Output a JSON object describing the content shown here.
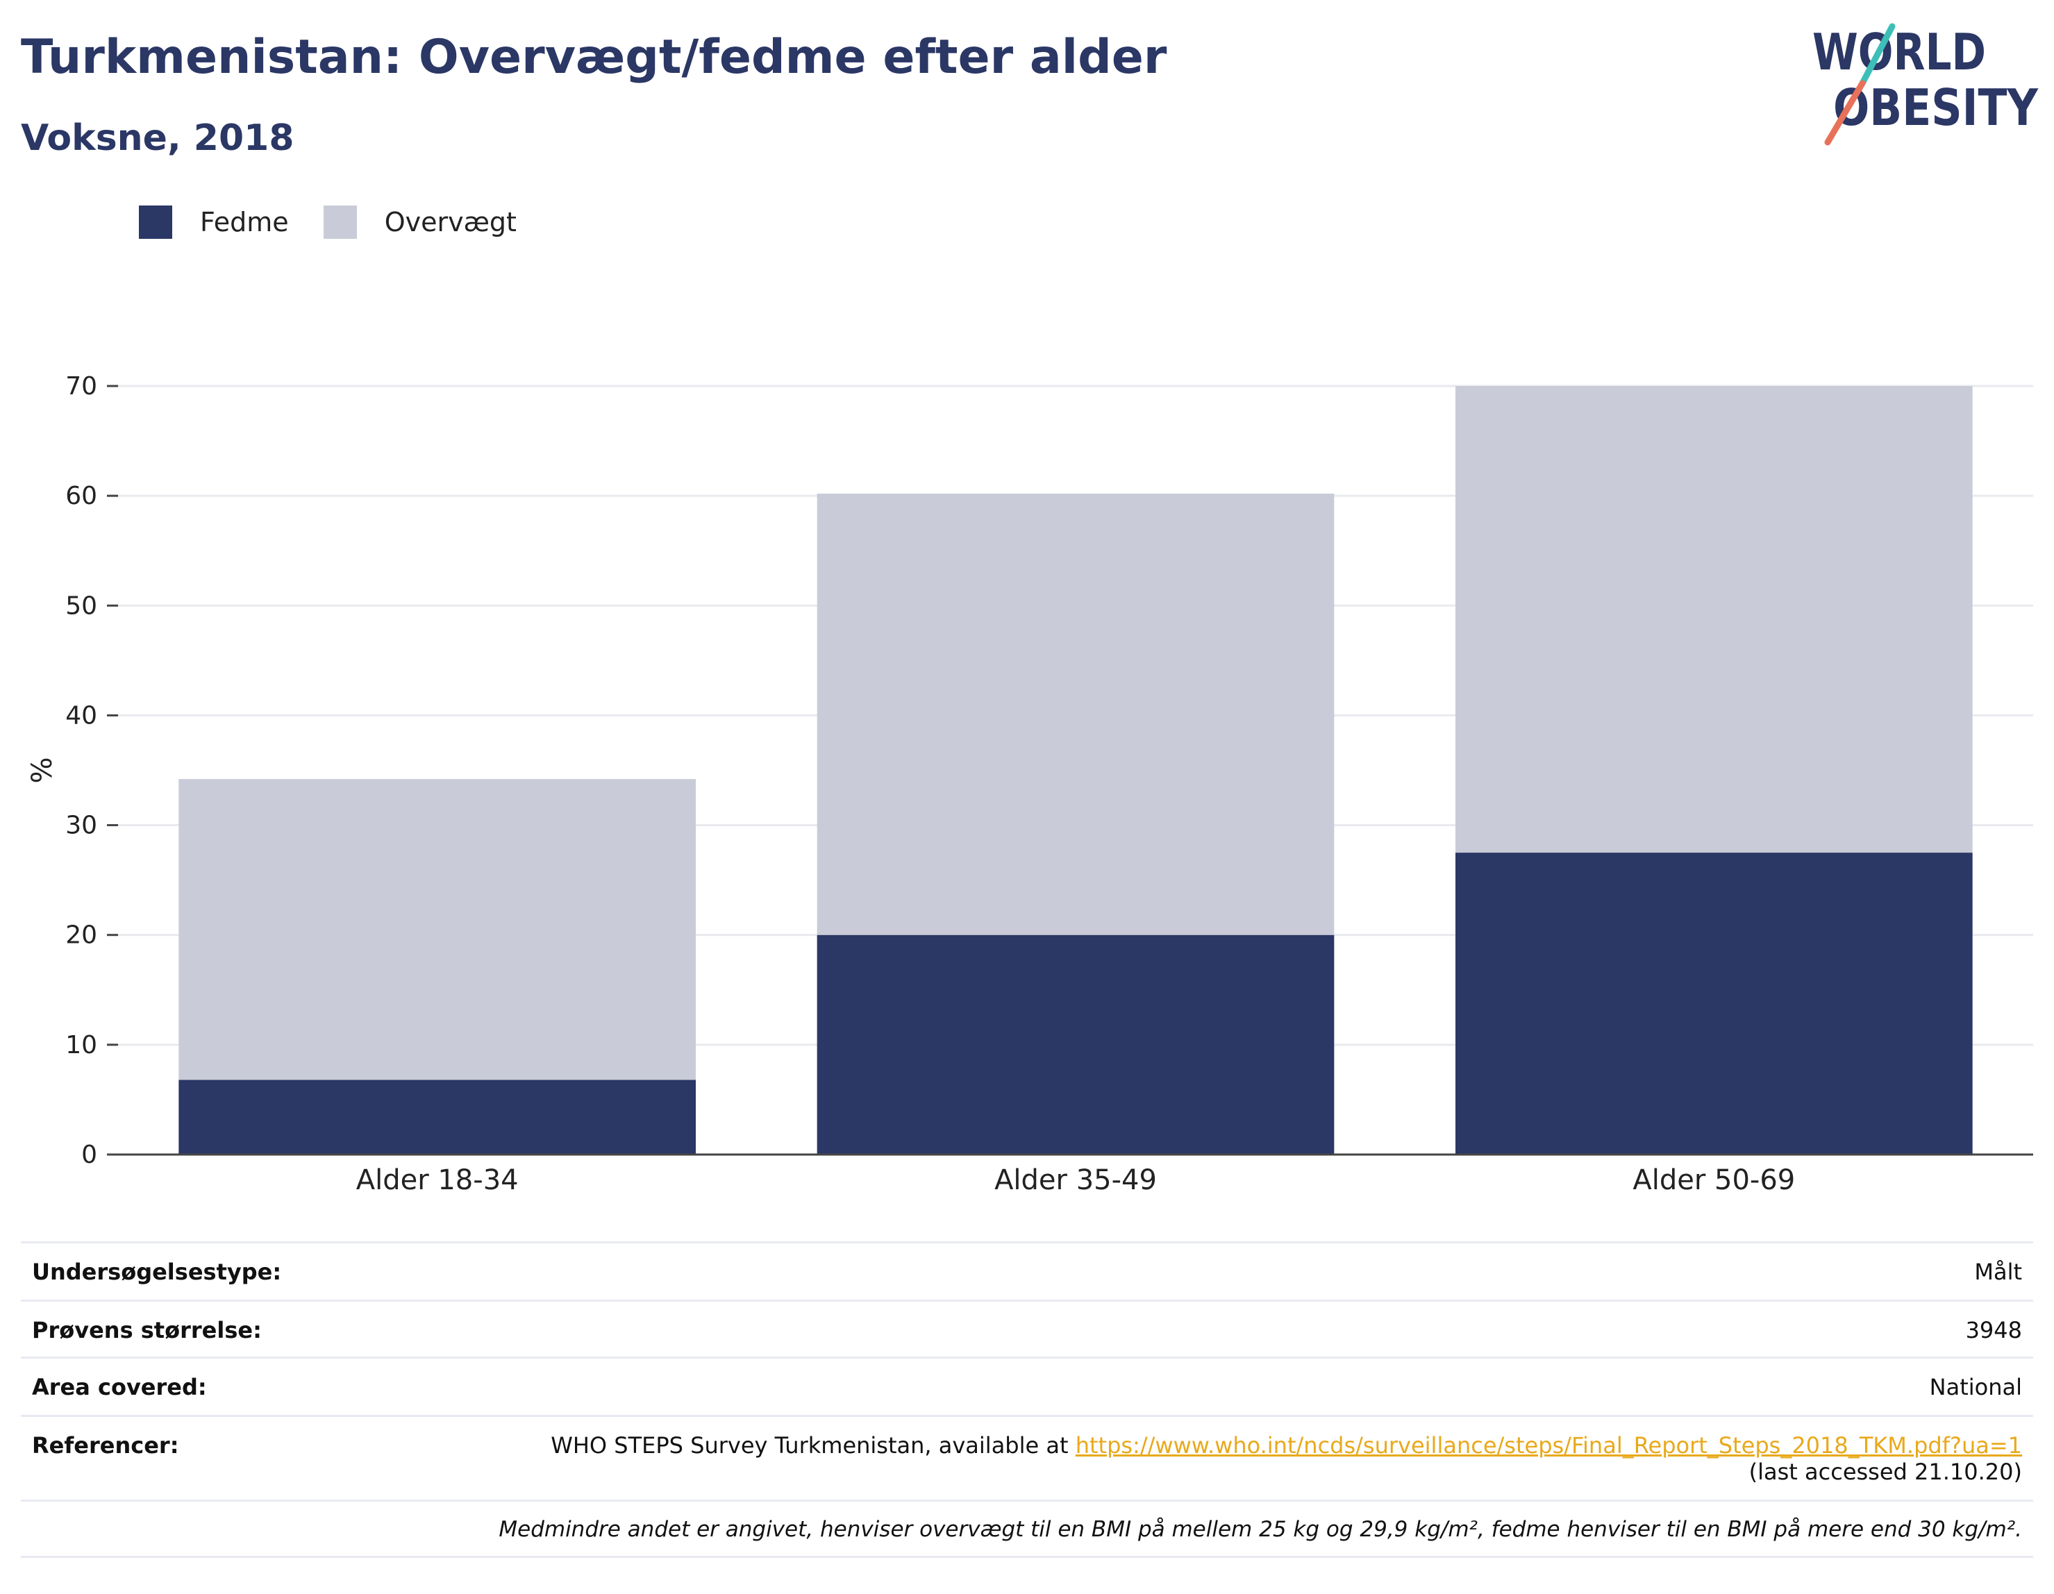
{
  "header": {
    "title": "Turkmenistan: Overvægt/fedme efter alder",
    "subtitle": "Voksne, 2018"
  },
  "logo": {
    "line1": "WORLD",
    "line2": "OBESITY",
    "text_color": "#2b3765",
    "slash_color_top": "#3dbfb8",
    "slash_color_bottom": "#e8715a"
  },
  "legend": {
    "items": [
      {
        "label": "Fedme",
        "color": "#2b3765"
      },
      {
        "label": "Overvægt",
        "color": "#c9ccd8"
      }
    ]
  },
  "chart_data": {
    "type": "bar",
    "stacked": true,
    "categories": [
      "Alder 18-34",
      "Alder 35-49",
      "Alder 50-69"
    ],
    "series": [
      {
        "name": "Fedme",
        "color": "#2b3765",
        "values": [
          6.8,
          20.0,
          27.5
        ]
      },
      {
        "name": "Overvægt",
        "color": "#c9ccd8",
        "values": [
          27.4,
          40.2,
          42.5
        ]
      }
    ],
    "ylabel": "%",
    "ylim": [
      0,
      70
    ],
    "yticks": [
      0,
      10,
      20,
      30,
      40,
      50,
      60,
      70
    ],
    "grid": true,
    "legend_position": "top-left"
  },
  "info": {
    "survey_type_label": "Undersøgelsestype:",
    "survey_type_value": "Målt",
    "sample_size_label": "Prøvens størrelse:",
    "sample_size_value": "3948",
    "area_label": "Area covered:",
    "area_value": "National",
    "references_label": "Referencer:",
    "references_text": "WHO STEPS Survey Turkmenistan, available at ",
    "references_link": "https://www.who.int/ncds/surveillance/steps/Final_Report_Steps_2018_TKM.pdf?ua=1",
    "references_accessed": "(last accessed 21.10.20)",
    "note": "Medmindre andet er angivet, henviser overvægt til en BMI på mellem 25 kg og 29,9 kg/m², fedme henviser til en BMI på mere end 30 kg/m²."
  }
}
